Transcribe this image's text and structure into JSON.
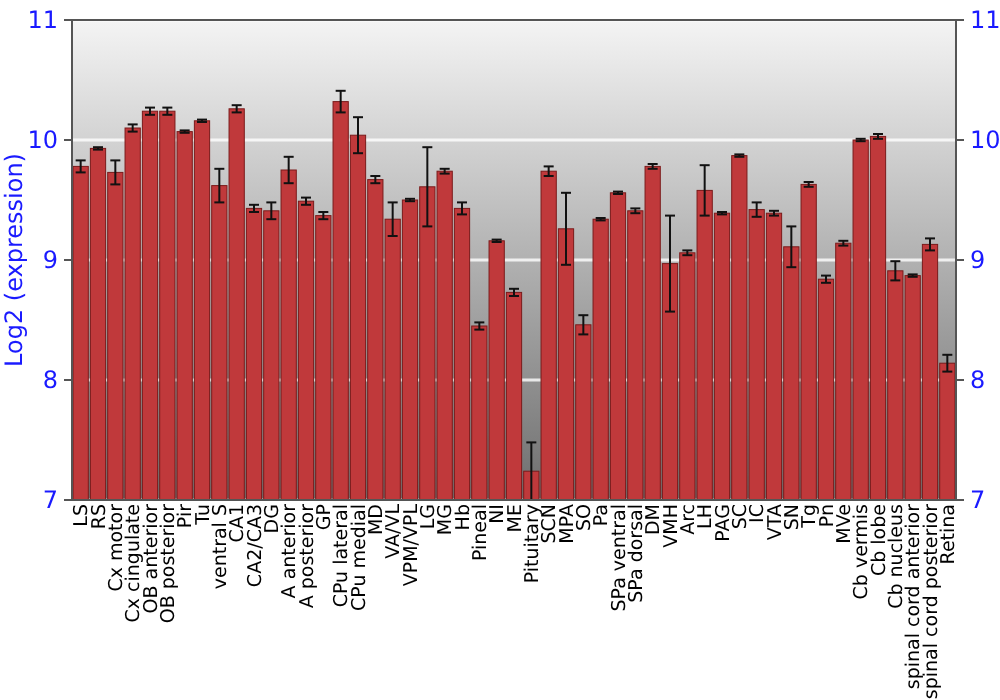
{
  "chart_data": {
    "type": "bar",
    "ylabel": "Log2 (expression)",
    "categories": [
      "LS",
      "RS",
      "Cx motor",
      "Cx cingulate",
      "OB anterior",
      "OB posterior",
      "Pir",
      "Tu",
      "ventral S",
      "CA1",
      "CA2/CA3",
      "DG",
      "A anterior",
      "A posterior",
      "GP",
      "CPu lateral",
      "CPu medial",
      "MD",
      "VA/VL",
      "VPM/VPL",
      "LG",
      "MG",
      "Hb",
      "Pineal",
      "NI",
      "ME",
      "Pituitary",
      "SCN",
      "MPA",
      "SO",
      "Pa",
      "SPa ventral",
      "SPa dorsal",
      "DM",
      "VMH",
      "Arc",
      "LH",
      "PAG",
      "SC",
      "IC",
      "VTA",
      "SN",
      "Tg",
      "Pn",
      "MVe",
      "Cb vermis",
      "Cb lobe",
      "Cb nucleus",
      "spinal cord anterior",
      "spinal cord posterior",
      "Retina"
    ],
    "values": [
      9.78,
      9.93,
      9.73,
      10.1,
      10.24,
      10.24,
      10.07,
      10.16,
      9.62,
      10.26,
      9.43,
      9.41,
      9.75,
      9.49,
      9.37,
      10.32,
      10.04,
      9.67,
      9.34,
      9.5,
      9.61,
      9.74,
      9.43,
      8.45,
      9.16,
      8.73,
      7.24,
      9.74,
      9.26,
      8.46,
      9.34,
      9.56,
      9.41,
      9.78,
      8.97,
      9.06,
      9.58,
      9.39,
      9.87,
      9.42,
      9.39,
      9.11,
      9.63,
      8.84,
      9.14,
      10.0,
      10.03,
      8.91,
      8.87,
      9.13,
      8.14
    ],
    "errors": [
      0.05,
      0.01,
      0.1,
      0.03,
      0.03,
      0.03,
      0.01,
      0.01,
      0.14,
      0.03,
      0.03,
      0.07,
      0.11,
      0.03,
      0.03,
      0.09,
      0.15,
      0.03,
      0.14,
      0.01,
      0.33,
      0.02,
      0.05,
      0.03,
      0.01,
      0.03,
      0.24,
      0.04,
      0.3,
      0.08,
      0.01,
      0.01,
      0.02,
      0.02,
      0.4,
      0.02,
      0.21,
      0.01,
      0.01,
      0.06,
      0.02,
      0.17,
      0.02,
      0.03,
      0.02,
      0.01,
      0.02,
      0.08,
      0.01,
      0.05,
      0.07
    ],
    "color": "#c0393b",
    "ylim": [
      7,
      11
    ],
    "yticks": [
      7,
      8,
      9,
      10,
      11
    ],
    "y2lim": [
      7,
      11
    ],
    "y2ticks": [
      7,
      8,
      9,
      10,
      11
    ],
    "grid": "y"
  }
}
